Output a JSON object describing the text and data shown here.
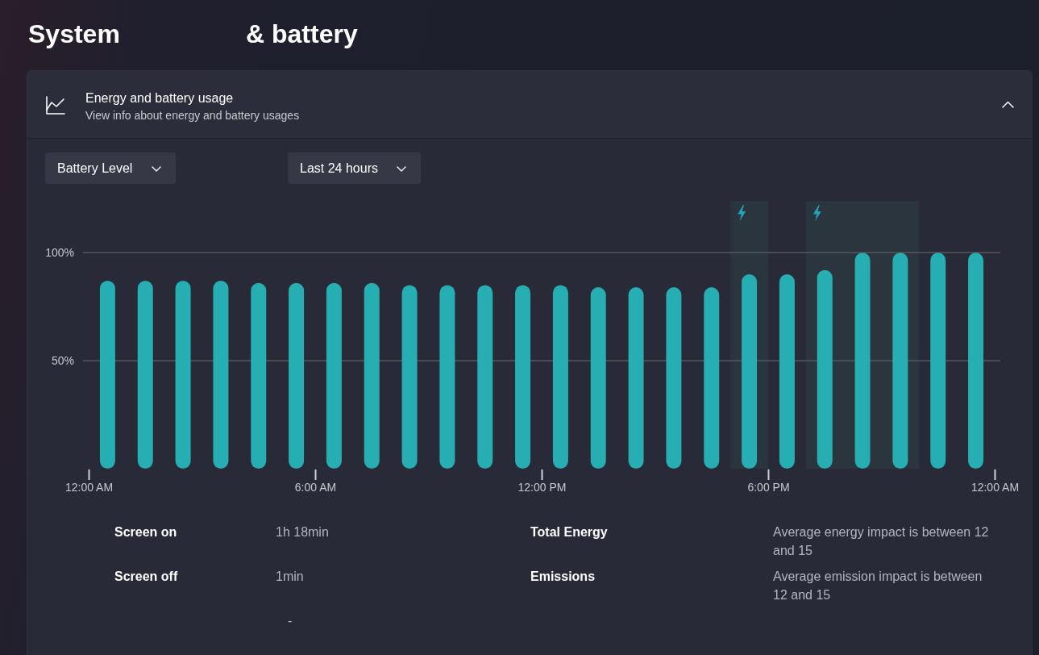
{
  "chart_data": {
    "type": "bar",
    "title": "Energy and battery usage",
    "subtitle": "View info about energy and battery usages",
    "x": [
      0.5,
      1.5,
      2.5,
      3.5,
      4.5,
      5.5,
      6.5,
      7.5,
      8.5,
      9.5,
      10.5,
      11.5,
      12.5,
      13.5,
      14.5,
      15.5,
      16.5,
      17.5,
      18.5,
      19.5,
      20.5,
      21.5,
      22.5,
      23.5
    ],
    "values": [
      87,
      87,
      87,
      87,
      86,
      86,
      86,
      86,
      85,
      85,
      85,
      85,
      85,
      84,
      84,
      84,
      84,
      90,
      90,
      92,
      100,
      100,
      100,
      100
    ],
    "color": "#26aeb2",
    "xlim": [
      -0.15,
      24.15
    ],
    "xticks": [
      {
        "value": 0,
        "label": "12:00 AM"
      },
      {
        "value": 6,
        "label": "6:00 AM"
      },
      {
        "value": 12,
        "label": "12:00 PM"
      },
      {
        "value": 18,
        "label": "6:00 PM"
      },
      {
        "value": 24,
        "label": "12:00 AM"
      }
    ],
    "ylim": [
      0,
      124
    ],
    "yticks": [
      {
        "value": 50,
        "label": "50%"
      },
      {
        "value": 100,
        "label": "100%"
      }
    ],
    "grid": "y",
    "bands": [
      {
        "axis": "x",
        "from": 17,
        "to": 18,
        "color": "#2b353d"
      },
      {
        "axis": "x",
        "from": 19,
        "to": 22,
        "color": "#2b353d"
      }
    ],
    "annotations": [
      "System",
      "& battery",
      "Battery Level",
      "Last 24 hours",
      "Screen on",
      "1h 18min",
      "Total Energy",
      "Average energy impact is between 12 and 15",
      "Screen off",
      "1min",
      "Emissions",
      "Average emission impact is between 12 and 15",
      "-"
    ]
  }
}
